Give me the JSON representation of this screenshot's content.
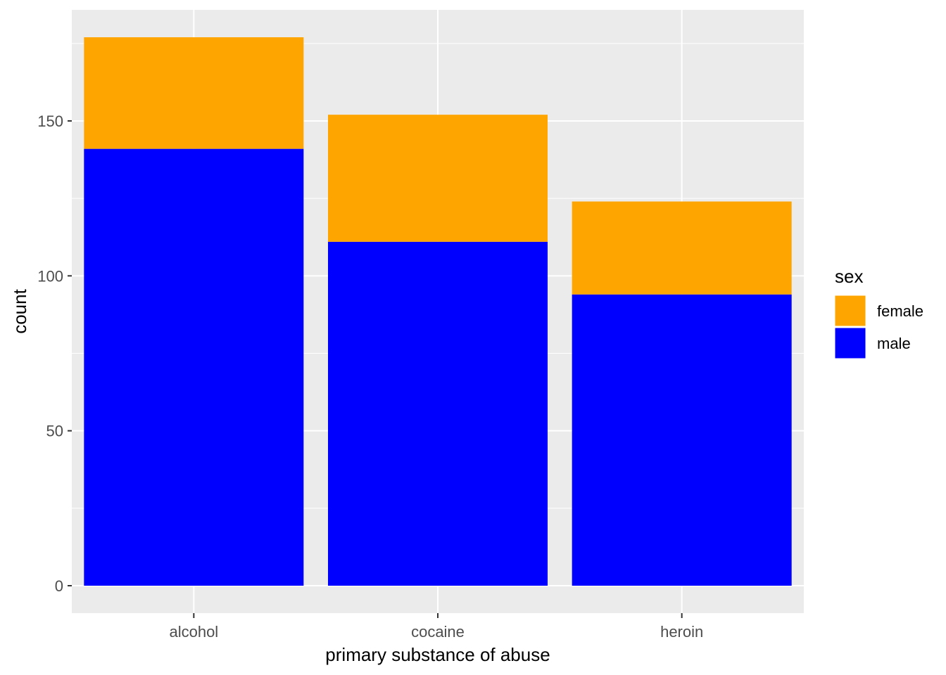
{
  "chart_data": {
    "type": "bar",
    "stacked": true,
    "categories": [
      "alcohol",
      "cocaine",
      "heroin"
    ],
    "series": [
      {
        "name": "female",
        "color": "#FFA500",
        "values": [
          36,
          41,
          30
        ]
      },
      {
        "name": "male",
        "color": "#0000FF",
        "values": [
          141,
          111,
          94
        ]
      }
    ],
    "title": "",
    "xlabel": "primary substance of abuse",
    "ylabel": "count",
    "ylim": [
      -8.85,
      185.85
    ],
    "yticks": [
      0,
      50,
      100,
      150
    ],
    "yminor": [
      25,
      75,
      125,
      175
    ],
    "grid": true,
    "legend": {
      "title": "sex",
      "placement": "right",
      "entries": [
        "female",
        "male"
      ]
    },
    "panel_background": "#EBEBEB"
  }
}
